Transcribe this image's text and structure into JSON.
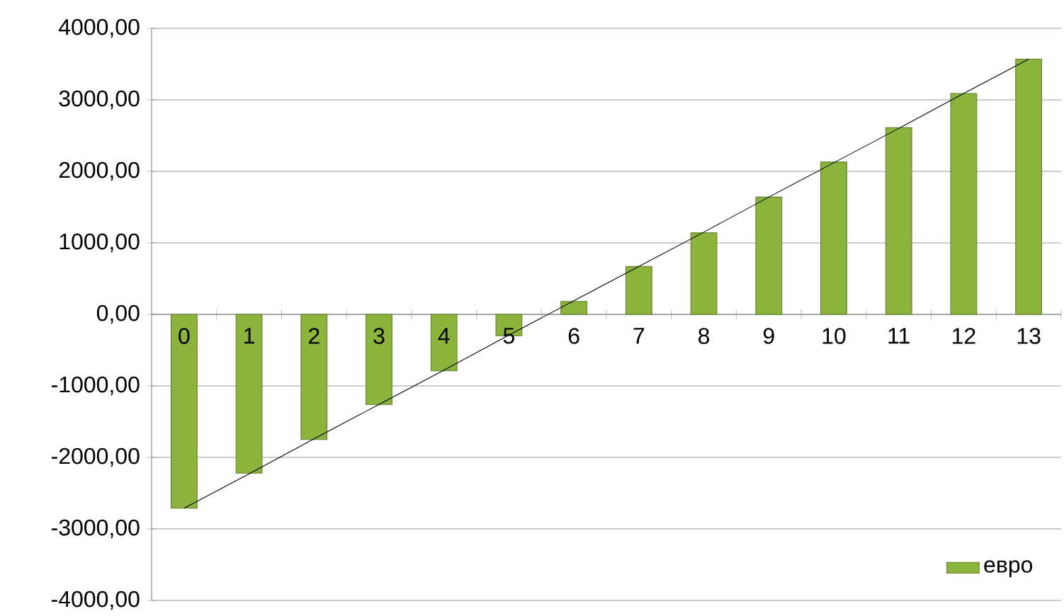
{
  "chart_data": {
    "type": "bar",
    "categories": [
      "0",
      "1",
      "2",
      "3",
      "4",
      "5",
      "6",
      "7",
      "8",
      "9",
      "10",
      "11",
      "12",
      "13"
    ],
    "series": [
      {
        "name": "евро",
        "color": "#8cb43c",
        "values": [
          -2710,
          -2220,
          -1750,
          -1260,
          -790,
          -300,
          180,
          670,
          1140,
          1640,
          2130,
          2610,
          3090,
          3570
        ]
      },
      {
        "type": "line",
        "color": "#000000",
        "values": [
          -2710,
          -2230,
          -1740,
          -1260,
          -780,
          -290,
          190,
          670,
          1150,
          1640,
          2120,
          2600,
          3090,
          3570
        ]
      }
    ],
    "ylim": [
      -4000,
      4000
    ],
    "yticks": [
      {
        "value": -4000,
        "label": "-4000,00"
      },
      {
        "value": -3000,
        "label": "-3000,00"
      },
      {
        "value": -2000,
        "label": "-2000,00"
      },
      {
        "value": -1000,
        "label": "-1000,00"
      },
      {
        "value": 0,
        "label": "0,00"
      },
      {
        "value": 1000,
        "label": "1000,00"
      },
      {
        "value": 2000,
        "label": "2000,00"
      },
      {
        "value": 3000,
        "label": "3000,00"
      },
      {
        "value": 4000,
        "label": "4000,00"
      }
    ],
    "grid": "y",
    "legend": "bottom right"
  }
}
